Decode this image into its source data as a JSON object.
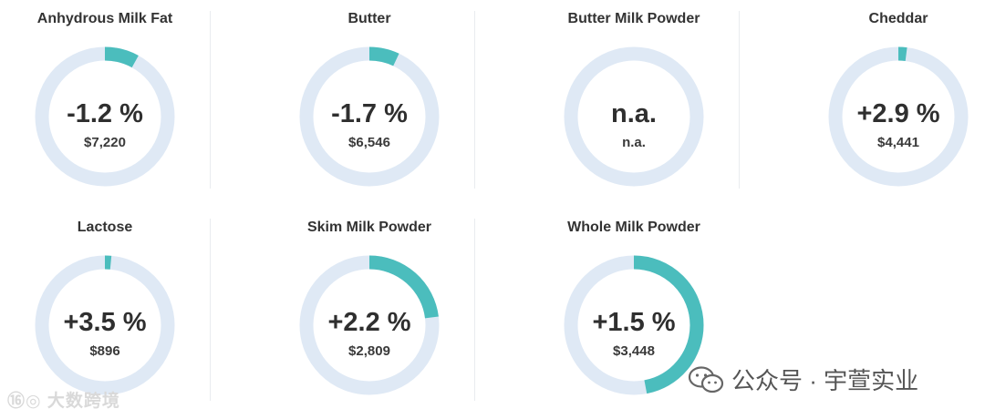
{
  "accent_color": "#4bbdbd",
  "track_color": "#dfe9f5",
  "chart_data": {
    "type": "donut-grid",
    "unit": "%",
    "items": [
      {
        "name": "Anhydrous Milk Fat",
        "change_label": "-1.2 %",
        "change": -1.2,
        "price": "$7,220",
        "fill_fraction": 0.08
      },
      {
        "name": "Butter",
        "change_label": "-1.7 %",
        "change": -1.7,
        "price": "$6,546",
        "fill_fraction": 0.07
      },
      {
        "name": "Butter Milk Powder",
        "change_label": "n.a.",
        "change": null,
        "price": "n.a.",
        "fill_fraction": 0
      },
      {
        "name": "Cheddar",
        "change_label": "+2.9 %",
        "change": 2.9,
        "price": "$4,441",
        "fill_fraction": 0.02
      },
      {
        "name": "Lactose",
        "change_label": "+3.5 %",
        "change": 3.5,
        "price": "$896",
        "fill_fraction": 0.015
      },
      {
        "name": "Skim Milk Powder",
        "change_label": "+2.2 %",
        "change": 2.2,
        "price": "$2,809",
        "fill_fraction": 0.23
      },
      {
        "name": "Whole Milk Powder",
        "change_label": "+1.5 %",
        "change": 1.5,
        "price": "$3,448",
        "fill_fraction": 0.47
      }
    ]
  },
  "watermarks": {
    "left_text": "⑯◎ 大数跨境",
    "right_text": "公众号 · 宇萱实业",
    "right_icon": "wechat-icon"
  }
}
